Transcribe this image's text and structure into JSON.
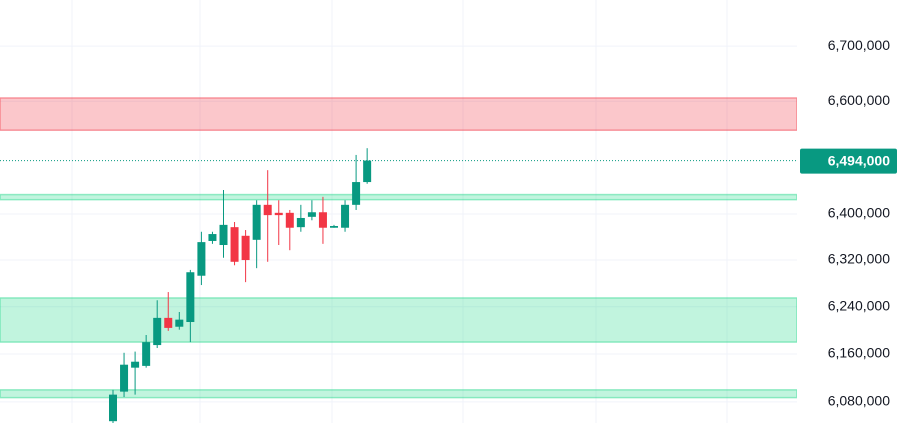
{
  "chart_data": {
    "type": "candlestick",
    "log_scale": true,
    "grid": true,
    "ylim": [
      6045000,
      6785000
    ],
    "yticks": [
      {
        "value": 6080000,
        "label": "6,080,000"
      },
      {
        "value": 6160000,
        "label": "6,160,000"
      },
      {
        "value": 6240000,
        "label": "6,240,000"
      },
      {
        "value": 6320000,
        "label": "6,320,000"
      },
      {
        "value": 6400000,
        "label": "6,400,000"
      },
      {
        "value": 6600000,
        "label": "6,600,000"
      },
      {
        "value": 6700000,
        "label": "6,700,000"
      }
    ],
    "last_price": {
      "value": 6494000,
      "label": "6,494,000",
      "color": "#089981"
    },
    "up_color": "#089981",
    "down_color": "#f23645",
    "zones": [
      {
        "from": 6548000,
        "to": 6606000,
        "color": "#f23645"
      },
      {
        "from": 6425000,
        "to": 6434000,
        "color": "#22d88a"
      },
      {
        "from": 6180000,
        "to": 6255000,
        "color": "#22d88a"
      },
      {
        "from": 6087000,
        "to": 6100000,
        "color": "#22d88a"
      }
    ],
    "open": [
      6048000,
      6097000,
      6137000,
      6140000,
      6175000,
      6221000,
      6206000,
      6214000,
      6293000,
      6353000,
      6346000,
      6377000,
      6362000,
      6355000,
      6416000,
      6402000,
      6402000,
      6377000,
      6395000,
      6403000,
      6376000,
      6376000,
      6416000,
      6456000
    ],
    "high": [
      6100000,
      6162000,
      6164000,
      6192000,
      6251000,
      6265000,
      6231000,
      6303000,
      6369000,
      6369000,
      6442000,
      6386000,
      6372000,
      6424000,
      6477000,
      6424000,
      6407000,
      6416000,
      6424000,
      6430000,
      6381000,
      6424000,
      6504000,
      6516000
    ],
    "low": [
      6040000,
      6088000,
      6092000,
      6137000,
      6170000,
      6199000,
      6201000,
      6180000,
      6277000,
      6348000,
      6324000,
      6311000,
      6282000,
      6306000,
      6317000,
      6346000,
      6337000,
      6369000,
      6389000,
      6348000,
      6376000,
      6369000,
      6407000,
      6453000
    ],
    "close": [
      6092000,
      6142000,
      6147000,
      6180000,
      6221000,
      6204000,
      6218000,
      6299000,
      6351000,
      6365000,
      6381000,
      6317000,
      6320000,
      6416000,
      6398000,
      6398000,
      6376000,
      6393000,
      6403000,
      6376000,
      6379000,
      6416000,
      6456000,
      6494000
    ]
  }
}
